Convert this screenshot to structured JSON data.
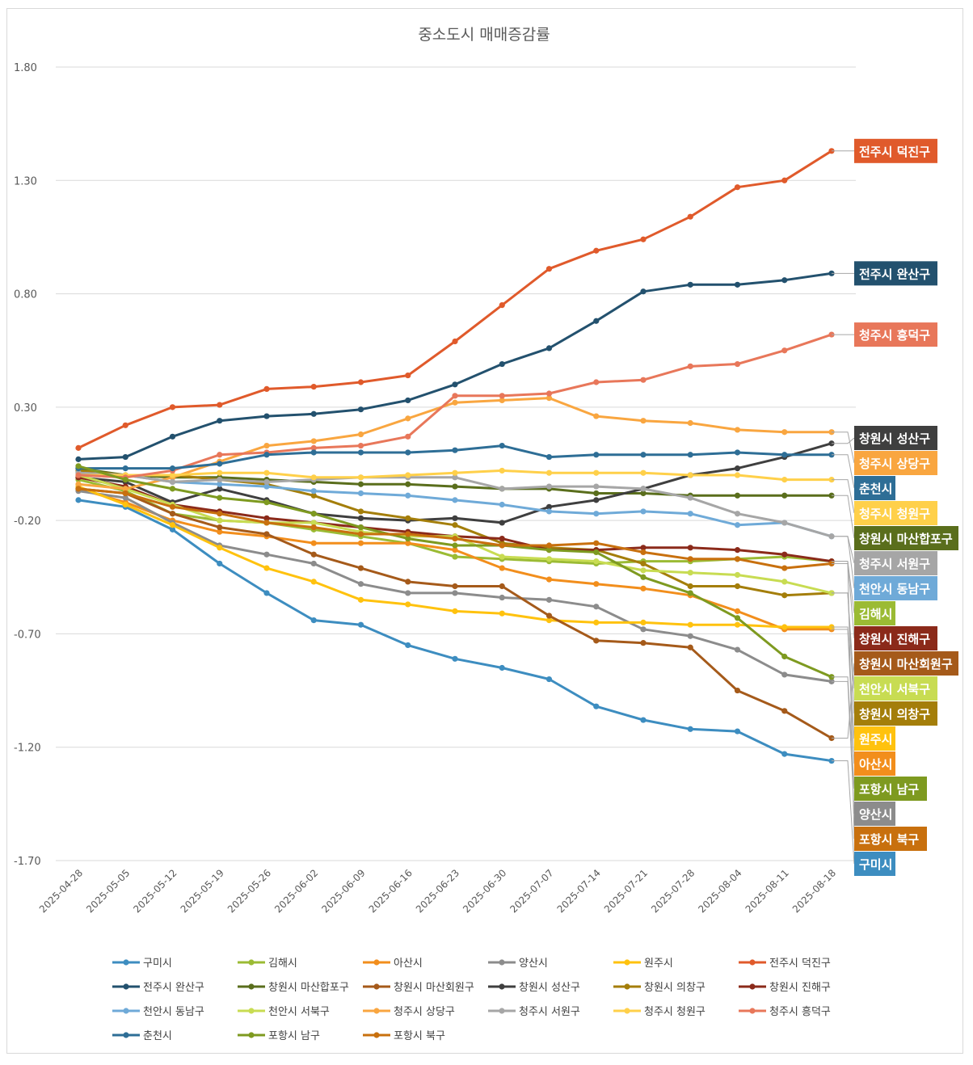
{
  "chart_data": {
    "type": "line",
    "title": "중소도시 매매증감률",
    "xlabel": "",
    "ylabel": "",
    "ylim": [
      -1.7,
      1.8
    ],
    "yticks": [
      "1.80",
      "1.30",
      "0.80",
      "0.30",
      "-0.20",
      "-0.70",
      "-1.20",
      "-1.70"
    ],
    "ytick_values": [
      1.8,
      1.3,
      0.8,
      0.3,
      -0.2,
      -0.7,
      -1.2,
      -1.7
    ],
    "grid": "horizontal",
    "legend_position": "bottom",
    "end_labels": true,
    "categories": [
      "2025-04-28",
      "2025-05-05",
      "2025-05-12",
      "2025-05-19",
      "2025-05-26",
      "2025-06-02",
      "2025-06-09",
      "2025-06-16",
      "2025-06-23",
      "2025-06-30",
      "2025-07-07",
      "2025-07-14",
      "2025-07-21",
      "2025-07-28",
      "2025-08-04",
      "2025-08-11",
      "2025-08-18"
    ],
    "series": [
      {
        "name": "구미시",
        "color": "#3D8DC0",
        "values": [
          -0.11,
          -0.14,
          -0.24,
          -0.39,
          -0.52,
          -0.64,
          -0.66,
          -0.75,
          -0.81,
          -0.85,
          -0.9,
          -1.02,
          -1.08,
          -1.12,
          -1.13,
          -1.23,
          -1.26
        ]
      },
      {
        "name": "김해시",
        "color": "#9BBB34",
        "values": [
          -0.02,
          -0.07,
          -0.17,
          -0.2,
          -0.21,
          -0.24,
          -0.27,
          -0.3,
          -0.36,
          -0.37,
          -0.38,
          -0.39,
          -0.38,
          -0.38,
          -0.37,
          -0.36,
          -0.38
        ]
      },
      {
        "name": "아산시",
        "color": "#F28E1C",
        "values": [
          -0.06,
          -0.12,
          -0.2,
          -0.25,
          -0.27,
          -0.3,
          -0.3,
          -0.3,
          -0.33,
          -0.41,
          -0.46,
          -0.48,
          -0.5,
          -0.53,
          -0.6,
          -0.68,
          -0.68
        ]
      },
      {
        "name": "양산시",
        "color": "#8C8C8C",
        "values": [
          -0.07,
          -0.1,
          -0.21,
          -0.31,
          -0.35,
          -0.39,
          -0.48,
          -0.52,
          -0.52,
          -0.54,
          -0.55,
          -0.58,
          -0.68,
          -0.71,
          -0.77,
          -0.88,
          -0.91
        ]
      },
      {
        "name": "원주시",
        "color": "#FFC20E",
        "values": [
          -0.05,
          -0.13,
          -0.22,
          -0.32,
          -0.41,
          -0.47,
          -0.55,
          -0.57,
          -0.6,
          -0.61,
          -0.64,
          -0.65,
          -0.65,
          -0.66,
          -0.66,
          -0.67,
          -0.67
        ]
      },
      {
        "name": "전주시 덕진구",
        "color": "#E05A2B",
        "values": [
          0.12,
          0.22,
          0.3,
          0.31,
          0.38,
          0.39,
          0.41,
          0.44,
          0.59,
          0.75,
          0.91,
          0.99,
          1.04,
          1.14,
          1.27,
          1.3,
          1.43
        ]
      },
      {
        "name": "전주시 완산구",
        "color": "#23516E",
        "values": [
          0.07,
          0.08,
          0.17,
          0.24,
          0.26,
          0.27,
          0.29,
          0.33,
          0.4,
          0.49,
          0.56,
          0.68,
          0.81,
          0.84,
          0.84,
          0.86,
          0.89
        ]
      },
      {
        "name": "창원시 마산합포구",
        "color": "#5A6E1C",
        "values": [
          0.03,
          0.0,
          -0.01,
          -0.01,
          -0.02,
          -0.03,
          -0.04,
          -0.04,
          -0.05,
          -0.06,
          -0.06,
          -0.08,
          -0.08,
          -0.09,
          -0.09,
          -0.09,
          -0.09
        ]
      },
      {
        "name": "창원시 마산회원구",
        "color": "#A55A1A",
        "values": [
          -0.06,
          -0.08,
          -0.17,
          -0.23,
          -0.26,
          -0.35,
          -0.41,
          -0.47,
          -0.49,
          -0.49,
          -0.62,
          -0.73,
          -0.74,
          -0.76,
          -0.95,
          -1.04,
          -1.16
        ]
      },
      {
        "name": "창원시 성산구",
        "color": "#3F3F3F",
        "values": [
          -0.01,
          -0.03,
          -0.12,
          -0.06,
          -0.11,
          -0.17,
          -0.19,
          -0.2,
          -0.19,
          -0.21,
          -0.14,
          -0.11,
          -0.06,
          0.0,
          0.03,
          0.08,
          0.14
        ]
      },
      {
        "name": "창원시 의창구",
        "color": "#A47E0A",
        "values": [
          0.02,
          0.0,
          0.0,
          -0.02,
          -0.04,
          -0.09,
          -0.16,
          -0.19,
          -0.22,
          -0.3,
          -0.32,
          -0.33,
          -0.39,
          -0.49,
          -0.49,
          -0.53,
          -0.52
        ]
      },
      {
        "name": "창원시 진해구",
        "color": "#8B2A1A",
        "values": [
          -0.01,
          -0.05,
          -0.13,
          -0.16,
          -0.19,
          -0.21,
          -0.23,
          -0.25,
          -0.27,
          -0.28,
          -0.33,
          -0.33,
          -0.32,
          -0.32,
          -0.33,
          -0.35,
          -0.38
        ]
      },
      {
        "name": "천안시 동남구",
        "color": "#6FAAD8",
        "values": [
          0.01,
          0.0,
          -0.03,
          -0.04,
          -0.05,
          -0.07,
          -0.08,
          -0.09,
          -0.11,
          -0.13,
          -0.16,
          -0.17,
          -0.16,
          -0.17,
          -0.22,
          -0.21,
          -0.27
        ]
      },
      {
        "name": "천안시 서북구",
        "color": "#C8DC52",
        "values": [
          0.0,
          -0.06,
          -0.13,
          -0.2,
          -0.21,
          -0.21,
          -0.25,
          -0.27,
          -0.27,
          -0.36,
          -0.37,
          -0.38,
          -0.42,
          -0.43,
          -0.44,
          -0.47,
          -0.52
        ]
      },
      {
        "name": "청주시 상당구",
        "color": "#F9A640",
        "values": [
          -0.04,
          -0.06,
          -0.01,
          0.06,
          0.13,
          0.15,
          0.18,
          0.25,
          0.32,
          0.33,
          0.34,
          0.26,
          0.24,
          0.23,
          0.2,
          0.19,
          0.19
        ]
      },
      {
        "name": "청주시 서원구",
        "color": "#A6A6A6",
        "values": [
          0.01,
          0.0,
          -0.03,
          -0.02,
          -0.03,
          -0.02,
          -0.01,
          -0.01,
          -0.01,
          -0.06,
          -0.05,
          -0.05,
          -0.06,
          -0.1,
          -0.17,
          -0.21,
          -0.27
        ]
      },
      {
        "name": "청주시 청원구",
        "color": "#FFD04A",
        "values": [
          0.0,
          0.0,
          0.0,
          0.01,
          0.01,
          -0.01,
          -0.01,
          0.0,
          0.01,
          0.02,
          0.01,
          0.01,
          0.01,
          0.0,
          0.0,
          -0.02,
          -0.02
        ]
      },
      {
        "name": "청주시 흥덕구",
        "color": "#E8775A",
        "values": [
          0.0,
          -0.01,
          0.02,
          0.09,
          0.1,
          0.12,
          0.13,
          0.17,
          0.35,
          0.35,
          0.36,
          0.41,
          0.42,
          0.48,
          0.49,
          0.55,
          0.62
        ]
      },
      {
        "name": "춘천시",
        "color": "#2E6E96",
        "values": [
          0.03,
          0.03,
          0.03,
          0.05,
          0.09,
          0.1,
          0.1,
          0.1,
          0.11,
          0.13,
          0.08,
          0.09,
          0.09,
          0.09,
          0.1,
          0.09,
          0.09
        ]
      },
      {
        "name": "포항시 남구",
        "color": "#7E9A20",
        "values": [
          0.04,
          -0.02,
          -0.06,
          -0.1,
          -0.12,
          -0.17,
          -0.23,
          -0.28,
          -0.31,
          -0.31,
          -0.33,
          -0.34,
          -0.45,
          -0.52,
          -0.63,
          -0.8,
          -0.89
        ]
      },
      {
        "name": "포항시 북구",
        "color": "#C8700E",
        "values": [
          -0.06,
          -0.08,
          -0.14,
          -0.17,
          -0.21,
          -0.23,
          -0.26,
          -0.26,
          -0.28,
          -0.31,
          -0.31,
          -0.3,
          -0.34,
          -0.37,
          -0.37,
          -0.41,
          -0.39
        ]
      }
    ],
    "label_order": [
      "전주시 덕진구",
      "전주시 완산구",
      "청주시 흥덕구",
      "창원시 성산구",
      "청주시 상당구",
      "춘천시",
      "청주시 청원구",
      "창원시 마산합포구",
      "청주시 서원구",
      "천안시 동남구",
      "김해시",
      "창원시 진해구",
      "창원시 마산회원구",
      "천안시 서북구",
      "창원시 의창구",
      "원주시",
      "아산시",
      "포항시 남구",
      "양산시",
      "포항시 북구",
      "구미시"
    ]
  }
}
